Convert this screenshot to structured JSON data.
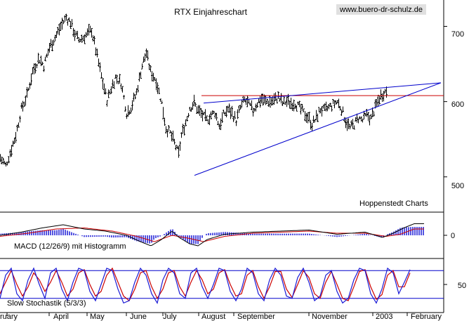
{
  "chart_data": [
    {
      "type": "ohlc",
      "title": "RTX Einjahreschart",
      "watermark": "www.buero-dr-schulz.de",
      "source": "Hoppenstedt Charts",
      "xlabels": [
        "ruary",
        "April",
        "May",
        "June",
        "July",
        "August",
        "September",
        "November",
        "2003",
        "February"
      ],
      "yticks": [
        500,
        600,
        700
      ],
      "ylim": [
        455,
        735
      ],
      "price_anchors": [
        [
          0,
          525
        ],
        [
          8,
          515
        ],
        [
          15,
          535
        ],
        [
          22,
          555
        ],
        [
          30,
          590
        ],
        [
          38,
          608
        ],
        [
          46,
          640
        ],
        [
          55,
          658
        ],
        [
          62,
          648
        ],
        [
          70,
          672
        ],
        [
          78,
          685
        ],
        [
          86,
          700
        ],
        [
          94,
          712
        ],
        [
          100,
          705
        ],
        [
          106,
          690
        ],
        [
          112,
          682
        ],
        [
          118,
          685
        ],
        [
          124,
          690
        ],
        [
          130,
          695
        ],
        [
          138,
          660
        ],
        [
          146,
          625
        ],
        [
          152,
          602
        ],
        [
          158,
          618
        ],
        [
          164,
          632
        ],
        [
          172,
          625
        ],
        [
          180,
          585
        ],
        [
          186,
          592
        ],
        [
          194,
          612
        ],
        [
          202,
          648
        ],
        [
          208,
          665
        ],
        [
          214,
          640
        ],
        [
          222,
          628
        ],
        [
          230,
          598
        ],
        [
          236,
          565
        ],
        [
          242,
          558
        ],
        [
          248,
          545
        ],
        [
          254,
          530
        ],
        [
          258,
          555
        ],
        [
          264,
          572
        ],
        [
          270,
          592
        ],
        [
          276,
          598
        ],
        [
          282,
          588
        ],
        [
          288,
          582
        ],
        [
          294,
          575
        ],
        [
          300,
          582
        ],
        [
          306,
          585
        ],
        [
          312,
          568
        ],
        [
          318,
          582
        ],
        [
          324,
          590
        ],
        [
          330,
          585
        ],
        [
          336,
          575
        ],
        [
          342,
          592
        ],
        [
          348,
          602
        ],
        [
          354,
          596
        ],
        [
          360,
          588
        ],
        [
          366,
          598
        ],
        [
          372,
          604
        ],
        [
          378,
          600
        ],
        [
          384,
          600
        ],
        [
          390,
          602
        ],
        [
          396,
          606
        ],
        [
          402,
          598
        ],
        [
          408,
          600
        ],
        [
          414,
          598
        ],
        [
          420,
          598
        ],
        [
          426,
          592
        ],
        [
          432,
          585
        ],
        [
          438,
          580
        ],
        [
          444,
          570
        ],
        [
          450,
          578
        ],
        [
          456,
          590
        ],
        [
          462,
          588
        ],
        [
          468,
          592
        ],
        [
          474,
          596
        ],
        [
          480,
          600
        ],
        [
          486,
          590
        ],
        [
          492,
          575
        ],
        [
          498,
          565
        ],
        [
          504,
          570
        ],
        [
          510,
          578
        ],
        [
          516,
          575
        ],
        [
          522,
          582
        ],
        [
          528,
          578
        ],
        [
          534,
          592
        ],
        [
          540,
          605
        ],
        [
          546,
          612
        ],
        [
          551,
          615
        ]
      ],
      "horizontal_line": 608,
      "channel_upper": [
        [
          585,
          598
        ],
        [
          628,
          625
        ]
      ],
      "channel_lower": [
        [
          572,
          502
        ],
        [
          628,
          625
        ]
      ]
    },
    {
      "type": "macd_histogram",
      "label": "MACD (12/26/9) mit Histogramm",
      "yticks": [
        0
      ],
      "ylim": [
        -20,
        20
      ],
      "macd_anchors": [
        [
          0,
          0
        ],
        [
          30,
          3
        ],
        [
          60,
          7
        ],
        [
          90,
          10
        ],
        [
          120,
          6
        ],
        [
          150,
          4
        ],
        [
          180,
          0
        ],
        [
          200,
          -6
        ],
        [
          215,
          -10
        ],
        [
          230,
          -4
        ],
        [
          245,
          4
        ],
        [
          255,
          -2
        ],
        [
          270,
          -8
        ],
        [
          282,
          -10
        ],
        [
          295,
          -4
        ],
        [
          320,
          1
        ],
        [
          360,
          3
        ],
        [
          400,
          4
        ],
        [
          440,
          5
        ],
        [
          480,
          1
        ],
        [
          520,
          3
        ],
        [
          545,
          -2
        ],
        [
          560,
          2
        ],
        [
          575,
          7
        ],
        [
          590,
          11
        ]
      ],
      "signal_anchors": [
        [
          0,
          -1
        ],
        [
          40,
          2
        ],
        [
          80,
          6
        ],
        [
          120,
          7
        ],
        [
          160,
          4
        ],
        [
          195,
          -1
        ],
        [
          220,
          -6
        ],
        [
          245,
          0
        ],
        [
          270,
          -3
        ],
        [
          290,
          -6
        ],
        [
          320,
          -1
        ],
        [
          360,
          2
        ],
        [
          400,
          3
        ],
        [
          440,
          4
        ],
        [
          480,
          2
        ],
        [
          520,
          2
        ],
        [
          550,
          -1
        ],
        [
          570,
          1
        ],
        [
          590,
          6
        ]
      ]
    },
    {
      "type": "line",
      "label": "Slow Stochastik (5/3/3)",
      "yticks": [
        50
      ],
      "ylim": [
        0,
        100
      ],
      "reference_lines": [
        80,
        20
      ],
      "k_anchors": [
        [
          0,
          20
        ],
        [
          8,
          70
        ],
        [
          16,
          85
        ],
        [
          24,
          30
        ],
        [
          32,
          15
        ],
        [
          40,
          60
        ],
        [
          48,
          85
        ],
        [
          56,
          50
        ],
        [
          64,
          20
        ],
        [
          72,
          75
        ],
        [
          80,
          85
        ],
        [
          88,
          40
        ],
        [
          96,
          15
        ],
        [
          104,
          55
        ],
        [
          112,
          85
        ],
        [
          120,
          80
        ],
        [
          128,
          35
        ],
        [
          136,
          15
        ],
        [
          144,
          50
        ],
        [
          152,
          85
        ],
        [
          160,
          80
        ],
        [
          168,
          40
        ],
        [
          176,
          10
        ],
        [
          184,
          15
        ],
        [
          192,
          55
        ],
        [
          200,
          85
        ],
        [
          208,
          70
        ],
        [
          216,
          30
        ],
        [
          224,
          10
        ],
        [
          232,
          60
        ],
        [
          240,
          85
        ],
        [
          248,
          75
        ],
        [
          256,
          30
        ],
        [
          264,
          20
        ],
        [
          272,
          75
        ],
        [
          280,
          85
        ],
        [
          288,
          45
        ],
        [
          296,
          20
        ],
        [
          304,
          50
        ],
        [
          312,
          85
        ],
        [
          320,
          80
        ],
        [
          328,
          35
        ],
        [
          336,
          15
        ],
        [
          344,
          40
        ],
        [
          352,
          85
        ],
        [
          360,
          75
        ],
        [
          368,
          30
        ],
        [
          376,
          15
        ],
        [
          384,
          60
        ],
        [
          392,
          85
        ],
        [
          400,
          70
        ],
        [
          408,
          25
        ],
        [
          416,
          20
        ],
        [
          424,
          65
        ],
        [
          432,
          85
        ],
        [
          440,
          55
        ],
        [
          448,
          15
        ],
        [
          456,
          25
        ],
        [
          464,
          70
        ],
        [
          472,
          80
        ],
        [
          480,
          35
        ],
        [
          488,
          10
        ],
        [
          496,
          20
        ],
        [
          504,
          60
        ],
        [
          512,
          85
        ],
        [
          520,
          80
        ],
        [
          528,
          30
        ],
        [
          536,
          10
        ],
        [
          544,
          40
        ],
        [
          552,
          85
        ],
        [
          560,
          75
        ],
        [
          568,
          30
        ],
        [
          576,
          55
        ],
        [
          584,
          82
        ]
      ],
      "d_anchors": [
        [
          0,
          30
        ],
        [
          8,
          55
        ],
        [
          16,
          80
        ],
        [
          24,
          50
        ],
        [
          32,
          25
        ],
        [
          40,
          45
        ],
        [
          48,
          75
        ],
        [
          56,
          60
        ],
        [
          64,
          35
        ],
        [
          72,
          55
        ],
        [
          80,
          80
        ],
        [
          88,
          55
        ],
        [
          96,
          25
        ],
        [
          104,
          40
        ],
        [
          112,
          75
        ],
        [
          120,
          82
        ],
        [
          128,
          50
        ],
        [
          136,
          25
        ],
        [
          144,
          35
        ],
        [
          152,
          70
        ],
        [
          160,
          85
        ],
        [
          168,
          55
        ],
        [
          176,
          25
        ],
        [
          184,
          15
        ],
        [
          192,
          40
        ],
        [
          200,
          75
        ],
        [
          208,
          80
        ],
        [
          216,
          45
        ],
        [
          224,
          20
        ],
        [
          232,
          40
        ],
        [
          240,
          75
        ],
        [
          248,
          80
        ],
        [
          256,
          45
        ],
        [
          264,
          25
        ],
        [
          272,
          55
        ],
        [
          280,
          80
        ],
        [
          288,
          60
        ],
        [
          296,
          30
        ],
        [
          304,
          40
        ],
        [
          312,
          75
        ],
        [
          320,
          82
        ],
        [
          328,
          50
        ],
        [
          336,
          25
        ],
        [
          344,
          30
        ],
        [
          352,
          70
        ],
        [
          360,
          80
        ],
        [
          368,
          45
        ],
        [
          376,
          20
        ],
        [
          384,
          45
        ],
        [
          392,
          78
        ],
        [
          400,
          78
        ],
        [
          408,
          40
        ],
        [
          416,
          22
        ],
        [
          424,
          50
        ],
        [
          432,
          80
        ],
        [
          440,
          65
        ],
        [
          448,
          30
        ],
        [
          456,
          20
        ],
        [
          464,
          55
        ],
        [
          472,
          78
        ],
        [
          480,
          50
        ],
        [
          488,
          20
        ],
        [
          496,
          15
        ],
        [
          504,
          45
        ],
        [
          512,
          78
        ],
        [
          520,
          82
        ],
        [
          528,
          45
        ],
        [
          536,
          18
        ],
        [
          544,
          28
        ],
        [
          552,
          70
        ],
        [
          560,
          80
        ],
        [
          568,
          45
        ],
        [
          576,
          45
        ],
        [
          584,
          75
        ]
      ]
    }
  ],
  "colors": {
    "background": "#ffffff",
    "price": "#000000",
    "horizontal_line": "#cc0000",
    "trendline": "#0000cc",
    "macd_hist": "#1a1ad6",
    "macd_line": "#000000",
    "signal_line": "#cc0000",
    "stoch_k": "#1a1ad6",
    "stoch_d": "#cc0000",
    "watermark_bg": "#e0e0e0"
  }
}
